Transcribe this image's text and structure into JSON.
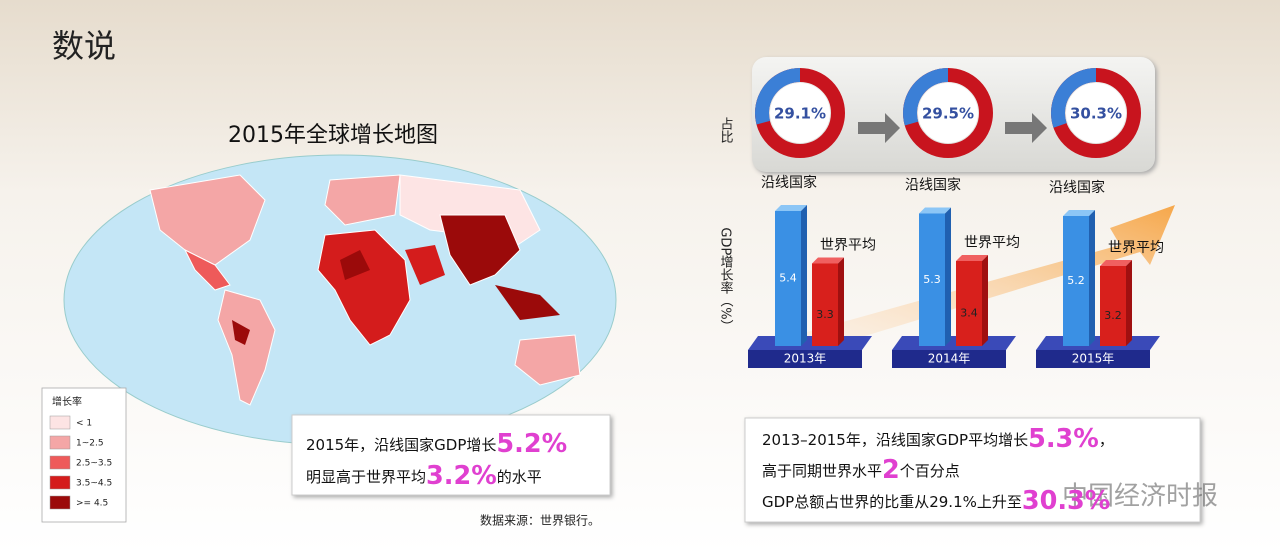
{
  "header": {
    "title": "数说"
  },
  "map": {
    "title": "2015年全球增长地图",
    "legend_title": "增长率",
    "legend": [
      {
        "label": "< 1",
        "color": "#fde4e4"
      },
      {
        "label": "1~2.5",
        "color": "#f4a6a6"
      },
      {
        "label": "2.5~3.5",
        "color": "#ee5a5a"
      },
      {
        "label": "3.5~4.5",
        "color": "#d41c1c"
      },
      {
        "label": ">= 4.5",
        "color": "#9b0a0a"
      }
    ],
    "callout": [
      [
        "2015年，沿线国家GDP增长",
        "5.2%"
      ],
      [
        "明显高于世界平均",
        "3.2%",
        "的水平"
      ]
    ],
    "source": "数据来源：世界银行。"
  },
  "chart_data": [
    {
      "type": "donut",
      "axis_label": "占比",
      "values": [
        29.1,
        29.5,
        30.3
      ],
      "value_labels": [
        "29.1%",
        "29.5%",
        "30.3%"
      ],
      "colors": [
        "#3b7fd6",
        "#c8141e"
      ]
    },
    {
      "type": "bar",
      "y_label": "GDP增长率（%）",
      "categories": [
        "2013年",
        "2014年",
        "2015年"
      ],
      "series": [
        {
          "name": "沿线国家",
          "color": "#3a90e4",
          "values": [
            5.4,
            5.3,
            5.2
          ]
        },
        {
          "name": "世界平均",
          "color": "#d8201c",
          "values": [
            3.3,
            3.4,
            3.2
          ]
        }
      ]
    }
  ],
  "summary": [
    [
      "2013–2015年，沿线国家GDP平均增长",
      "5.3%",
      "，"
    ],
    [
      "高于同期世界水平",
      "2",
      "个百分点"
    ],
    [
      "GDP总额占世界的比重从29.1%上升至",
      "30.3%"
    ]
  ],
  "watermark": "中国经济时报"
}
